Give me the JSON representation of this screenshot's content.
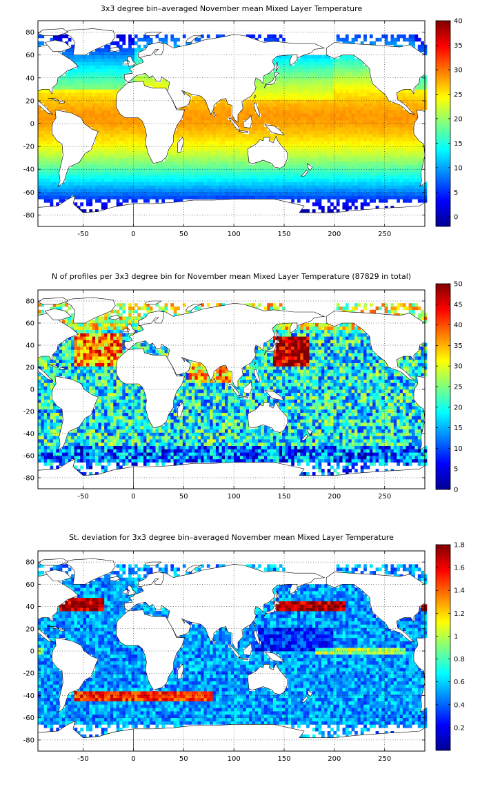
{
  "figure": {
    "panels": [
      {
        "title": "3x3 degree bin–averaged November mean Mixed Layer Temperature",
        "field": "temperature",
        "colorbar": {
          "min": -2,
          "max": 40,
          "ticks": [
            0,
            5,
            10,
            15,
            20,
            25,
            30,
            35,
            40
          ]
        }
      },
      {
        "title": "N of profiles per 3x3 degree bin for November mean Mixed Layer Temperature  (87829 in total)",
        "field": "count",
        "colorbar": {
          "min": 0,
          "max": 50,
          "ticks": [
            0,
            5,
            10,
            15,
            20,
            25,
            30,
            35,
            40,
            45,
            50
          ]
        }
      },
      {
        "title": "St. deviation for 3x3 degree bin–averaged November mean Mixed Layer Temperature",
        "field": "stddev",
        "colorbar": {
          "min": 0,
          "max": 1.8,
          "ticks": [
            0.2,
            0.4,
            0.6,
            0.8,
            1,
            1.2,
            1.4,
            1.6,
            1.8
          ]
        }
      }
    ],
    "axes": {
      "xlim": [
        -95,
        290
      ],
      "ylim": [
        -90,
        90
      ],
      "xticks": [
        -50,
        0,
        50,
        100,
        150,
        200,
        250
      ],
      "yticks": [
        -80,
        -60,
        -40,
        -20,
        0,
        20,
        40,
        60,
        80
      ],
      "grid": true,
      "grid_style": "dotted"
    },
    "colormap": "jet"
  }
}
